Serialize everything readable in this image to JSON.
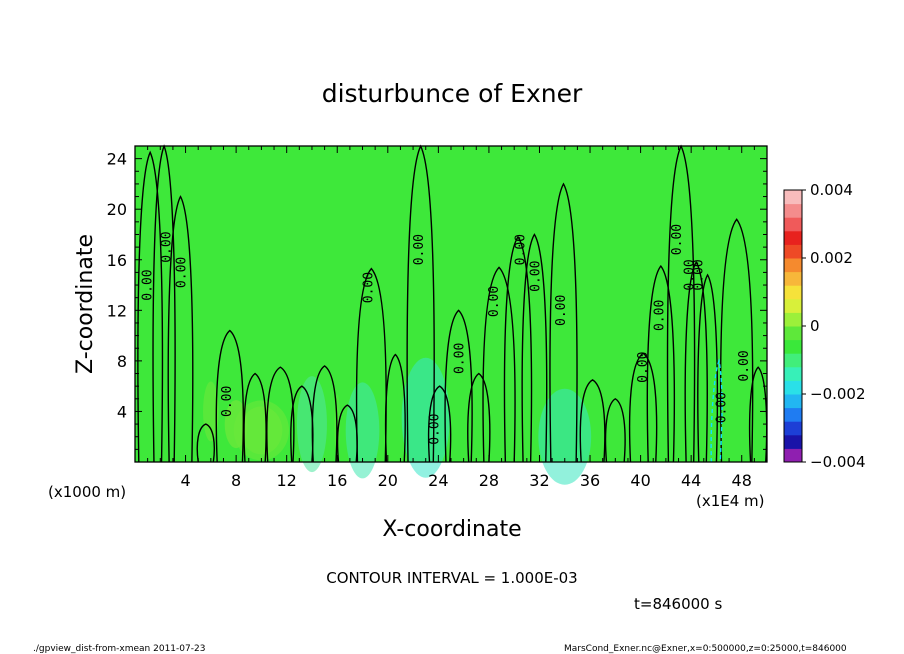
{
  "chart_data": {
    "type": "heatmap",
    "title": "disturbunce of Exner",
    "xlabel": "X-coordinate",
    "ylabel": "Z-coordinate",
    "x_unit_left": "(x1000 m)",
    "x_unit_right": "(x1E4 m)",
    "xlim": [
      0,
      50
    ],
    "ylim": [
      0,
      25
    ],
    "x_ticks": [
      "4",
      "8",
      "12",
      "16",
      "20",
      "24",
      "28",
      "32",
      "36",
      "40",
      "44",
      "48"
    ],
    "y_ticks": [
      "4",
      "8",
      "12",
      "16",
      "20",
      "24"
    ],
    "colorbar": {
      "range": [
        -0.004,
        0.004
      ],
      "tick_labels": [
        "0.004",
        "0.002",
        "0",
        "−0.002",
        "−0.004"
      ],
      "tick_values": [
        0.004,
        0.002,
        0,
        -0.002,
        -0.004
      ],
      "colors": [
        "#8f1fb0",
        "#1a13a8",
        "#1d3fd6",
        "#1f7cf2",
        "#22b6f2",
        "#2ae0e8",
        "#37f0b8",
        "#41ee7a",
        "#3ae83a",
        "#5ee83a",
        "#9cf03a",
        "#d8f03a",
        "#f6e23a",
        "#f7b73a",
        "#f58a2e",
        "#ee4a26",
        "#e8221e",
        "#f05a5a",
        "#f48c8c",
        "#f8bcbc"
      ]
    },
    "contour_labels": [
      {
        "text": "0.00",
        "x": 1.3,
        "z": 14
      },
      {
        "text": "0.00",
        "x": 2.8,
        "z": 17
      },
      {
        "text": "0.00",
        "x": 4.0,
        "z": 15
      },
      {
        "text": "0.00",
        "x": 7.6,
        "z": 4.8
      },
      {
        "text": "0.00",
        "x": 18.8,
        "z": 13.8
      },
      {
        "text": "0.00",
        "x": 22.8,
        "z": 16.8
      },
      {
        "text": "0.00",
        "x": 24.0,
        "z": 2.6
      },
      {
        "text": "0.00",
        "x": 26.0,
        "z": 8.2
      },
      {
        "text": "0.00",
        "x": 28.7,
        "z": 12.7
      },
      {
        "text": "0.00",
        "x": 30.8,
        "z": 16.8
      },
      {
        "text": "0.00",
        "x": 32.0,
        "z": 14.7
      },
      {
        "text": "0.00",
        "x": 34.0,
        "z": 12.0
      },
      {
        "text": "0.00",
        "x": 40.5,
        "z": 7.5
      },
      {
        "text": "0.00",
        "x": 41.8,
        "z": 11.6
      },
      {
        "text": "0.00",
        "x": 43.2,
        "z": 17.6
      },
      {
        "text": "0.00",
        "x": 44.2,
        "z": 14.8
      },
      {
        "text": "0.00",
        "x": 44.9,
        "z": 14.8
      },
      {
        "text": "0.00",
        "x": 46.7,
        "z": 4.3
      },
      {
        "text": "0.00",
        "x": 48.5,
        "z": 7.6
      }
    ]
  },
  "footer": {
    "contour_interval": "CONTOUR INTERVAL = 1.000E-03",
    "time": "t=846000 s",
    "script_info": "./gpview_dist-from-xmean  2011-07-23",
    "file_info": "MarsCond_Exner.nc@Exner,x=0:500000,z=0:25000,t=846000"
  }
}
